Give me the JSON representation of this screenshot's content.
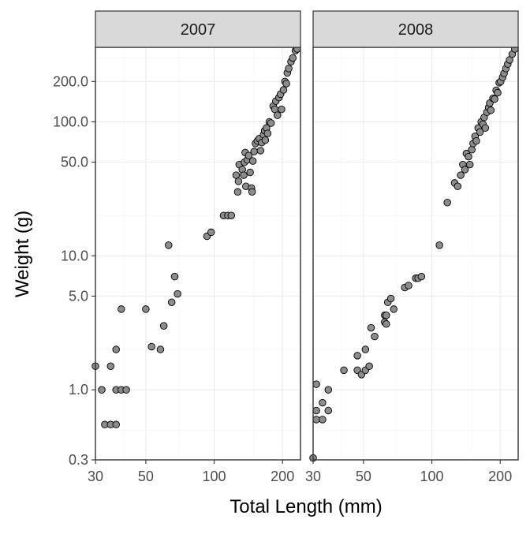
{
  "chart_data": {
    "type": "scatter",
    "facet_layout": "columns",
    "xlabel": "Total Length (mm)",
    "ylabel": "Weight (g)",
    "x_scale": "log",
    "y_scale": "log",
    "xlim": [
      30,
      240
    ],
    "ylim": [
      0.3,
      360
    ],
    "x_ticks": [
      30,
      50,
      100,
      200
    ],
    "x_tick_labels": [
      "30",
      "50",
      "100",
      "200"
    ],
    "y_ticks": [
      0.3,
      1,
      5,
      10,
      50,
      100,
      200
    ],
    "y_tick_labels": [
      "0.3",
      "1.0",
      "5.0",
      "10.0",
      "50.0",
      "100.0",
      "200.0"
    ],
    "grid": true,
    "point_color": "#8c8c8c",
    "point_outline": "#000000",
    "strip_fill": "#d9d9d9",
    "panels": [
      {
        "title": "2007",
        "points": [
          [
            30,
            1.5
          ],
          [
            32,
            1.0
          ],
          [
            33,
            0.55
          ],
          [
            35,
            1.5
          ],
          [
            35,
            0.55
          ],
          [
            37,
            2.0
          ],
          [
            37,
            0.55
          ],
          [
            37,
            1.0
          ],
          [
            39,
            1.0
          ],
          [
            39,
            4.0
          ],
          [
            41,
            1.0
          ],
          [
            50,
            4.0
          ],
          [
            53,
            2.1
          ],
          [
            58,
            2.0
          ],
          [
            60,
            3.0
          ],
          [
            63,
            12.0
          ],
          [
            65,
            4.5
          ],
          [
            67,
            7.0
          ],
          [
            69,
            5.2
          ],
          [
            93,
            14.0
          ],
          [
            97,
            15.0
          ],
          [
            110,
            20.0
          ],
          [
            115,
            20.0
          ],
          [
            119,
            20.0
          ],
          [
            125,
            40
          ],
          [
            127,
            30
          ],
          [
            128,
            36
          ],
          [
            129,
            48
          ],
          [
            133,
            44
          ],
          [
            135,
            40
          ],
          [
            136,
            50
          ],
          [
            137,
            59
          ],
          [
            138,
            33
          ],
          [
            140,
            52
          ],
          [
            142,
            56
          ],
          [
            144,
            42
          ],
          [
            146,
            32
          ],
          [
            147,
            30
          ],
          [
            148,
            51
          ],
          [
            150,
            60
          ],
          [
            152,
            69
          ],
          [
            155,
            72
          ],
          [
            158,
            75
          ],
          [
            160,
            61
          ],
          [
            162,
            70
          ],
          [
            165,
            80
          ],
          [
            167,
            86
          ],
          [
            168,
            73
          ],
          [
            170,
            90
          ],
          [
            172,
            82
          ],
          [
            175,
            100
          ],
          [
            178,
            98
          ],
          [
            182,
            131
          ],
          [
            185,
            124
          ],
          [
            187,
            143
          ],
          [
            190,
            112
          ],
          [
            193,
            152
          ],
          [
            196,
            161
          ],
          [
            198,
            124
          ],
          [
            202,
            173
          ],
          [
            205,
            200
          ],
          [
            208,
            193
          ],
          [
            210,
            232
          ],
          [
            213,
            250
          ],
          [
            218,
            281
          ],
          [
            222,
            300
          ],
          [
            228,
            340
          ],
          [
            232,
            350
          ]
        ]
      },
      {
        "title": "2008",
        "points": [
          [
            30,
            0.31
          ],
          [
            31,
            1.1
          ],
          [
            31,
            0.7
          ],
          [
            31,
            0.6
          ],
          [
            33,
            0.8
          ],
          [
            33,
            0.6
          ],
          [
            35,
            0.7
          ],
          [
            35,
            1.0
          ],
          [
            41,
            1.4
          ],
          [
            47,
            1.8
          ],
          [
            47,
            1.4
          ],
          [
            49,
            1.3
          ],
          [
            51,
            1.4
          ],
          [
            51,
            2.0
          ],
          [
            53,
            1.5
          ],
          [
            54,
            2.9
          ],
          [
            56,
            2.5
          ],
          [
            62,
            3.6
          ],
          [
            62,
            3.2
          ],
          [
            63,
            3.1
          ],
          [
            63,
            3.6
          ],
          [
            64,
            4.5
          ],
          [
            66,
            4.8
          ],
          [
            68,
            4.0
          ],
          [
            76,
            5.8
          ],
          [
            79,
            6.0
          ],
          [
            85,
            6.8
          ],
          [
            87,
            6.8
          ],
          [
            90,
            7.0
          ],
          [
            108,
            12.0
          ],
          [
            117,
            25.0
          ],
          [
            126,
            35
          ],
          [
            130,
            33
          ],
          [
            134,
            40
          ],
          [
            137,
            48
          ],
          [
            140,
            44
          ],
          [
            142,
            58
          ],
          [
            145,
            55
          ],
          [
            147,
            48
          ],
          [
            150,
            62
          ],
          [
            152,
            69
          ],
          [
            155,
            78
          ],
          [
            157,
            72
          ],
          [
            160,
            90
          ],
          [
            163,
            84
          ],
          [
            165,
            100
          ],
          [
            168,
            96
          ],
          [
            170,
            108
          ],
          [
            172,
            90
          ],
          [
            175,
            118
          ],
          [
            178,
            128
          ],
          [
            180,
            138
          ],
          [
            182,
            122
          ],
          [
            186,
            150
          ],
          [
            189,
            148
          ],
          [
            192,
            172
          ],
          [
            195,
            165
          ],
          [
            198,
            196
          ],
          [
            201,
            200
          ],
          [
            205,
            215
          ],
          [
            208,
            230
          ],
          [
            212,
            250
          ],
          [
            216,
            270
          ],
          [
            220,
            290
          ],
          [
            226,
            320
          ],
          [
            232,
            350
          ]
        ]
      }
    ]
  }
}
